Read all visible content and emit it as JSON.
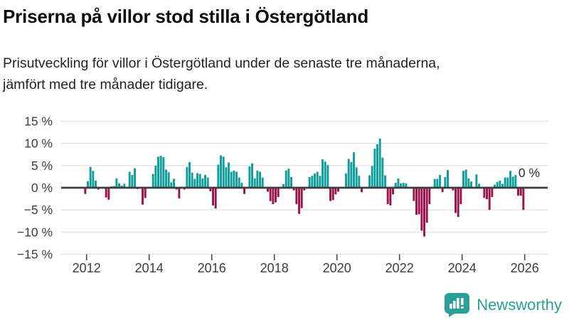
{
  "header": {
    "title": "Priserna på villor stod stilla i Östergötland",
    "subtitle_line1": "Prisutveckling för villor i Östergötland under de senaste tre månaderna,",
    "subtitle_line2": "jämfört med tre månader tidigare."
  },
  "chart_data": {
    "type": "bar",
    "title": "Priserna på villor stod stilla i Östergötland",
    "xlabel": "",
    "ylabel": "",
    "unit": "%",
    "frequency": "monthly",
    "start": "2011-12",
    "end": "2026-01",
    "ylim": [
      -15,
      15
    ],
    "grid": "horizontal",
    "yticks": [
      15,
      10,
      5,
      0,
      -5,
      -10,
      -15
    ],
    "ytick_labels": [
      "15 %",
      "10 %",
      "5 %",
      "0 %",
      "−5 %",
      "−10 %",
      "−15 %"
    ],
    "xticks": [
      2012,
      2014,
      2016,
      2018,
      2020,
      2022,
      2024,
      2026
    ],
    "xtick_labels": [
      "2012",
      "2014",
      "2016",
      "2018",
      "2020",
      "2022",
      "2024",
      "2026"
    ],
    "annotation": {
      "text": "0 %",
      "value": 0,
      "refers_to": "latest value"
    },
    "colors": {
      "positive": "#0D9D9B",
      "negative": "#9E1048",
      "zero_line": "#3D3D3D",
      "gridline": "#E3E3E3",
      "tick": "#4A4A4A",
      "axis_text": "#3D3D3D"
    },
    "values": [
      -1.4,
      1.5,
      4.7,
      3.8,
      1.6,
      -0.4,
      0.1,
      0.0,
      -2.2,
      -2.7,
      0.3,
      0.4,
      2.1,
      1.0,
      0.5,
      0.9,
      0.0,
      3.6,
      2.9,
      4.4,
      -0.3,
      0.0,
      -3.8,
      -2.3,
      0.0,
      0.0,
      3.1,
      5.0,
      7.0,
      7.2,
      6.9,
      4.1,
      3.5,
      1.2,
      2.0,
      -0.4,
      -2.4,
      0.0,
      -0.4,
      4.7,
      5.8,
      3.4,
      2.0,
      3.3,
      3.1,
      2.1,
      2.9,
      2.3,
      -0.8,
      -4.0,
      -4.7,
      5.2,
      7.3,
      7.0,
      4.6,
      5.7,
      3.6,
      3.9,
      3.6,
      2.3,
      1.1,
      -1.4,
      0.0,
      4.8,
      5.5,
      2.1,
      3.9,
      3.6,
      2.3,
      0.0,
      -0.9,
      -3.0,
      -3.7,
      -3.3,
      -2.1,
      0.0,
      0.8,
      3.9,
      4.3,
      2.4,
      -0.6,
      -3.7,
      -5.9,
      -4.6,
      -0.6,
      0.0,
      2.4,
      2.7,
      3.2,
      3.6,
      2.7,
      6.4,
      5.9,
      5.1,
      -3.0,
      -2.8,
      -1.5,
      -0.9,
      0.0,
      0.0,
      3.2,
      6.5,
      5.8,
      8.0,
      4.6,
      2.7,
      -1.0,
      0.0,
      0.0,
      2.8,
      4.9,
      8.8,
      9.8,
      11.1,
      6.8,
      2.8,
      -3.7,
      -4.0,
      -1.5,
      1.1,
      2.1,
      1.0,
      1.1,
      1.0,
      0.0,
      0.0,
      -3.0,
      -6.1,
      -6.0,
      -9.7,
      -11.0,
      -7.9,
      -3.7,
      0.0,
      2.0,
      2.0,
      2.9,
      -1.0,
      2.4,
      4.0,
      0.0,
      -0.6,
      -5.7,
      -6.6,
      -3.7,
      3.8,
      4.1,
      2.1,
      1.4,
      0.0,
      3.0,
      0.9,
      0.0,
      -2.3,
      -2.6,
      -5.0,
      -2.1,
      0.7,
      1.3,
      1.6,
      0.9,
      2.3,
      2.3,
      3.8,
      2.5,
      2.9,
      -1.8,
      -1.8,
      -5.0,
      0.0
    ]
  },
  "branding": {
    "logo_text": "Newsworthy",
    "logo_color": "#2BA098",
    "logo_icon": "newsworthy-speech-bubble-chart-icon"
  }
}
